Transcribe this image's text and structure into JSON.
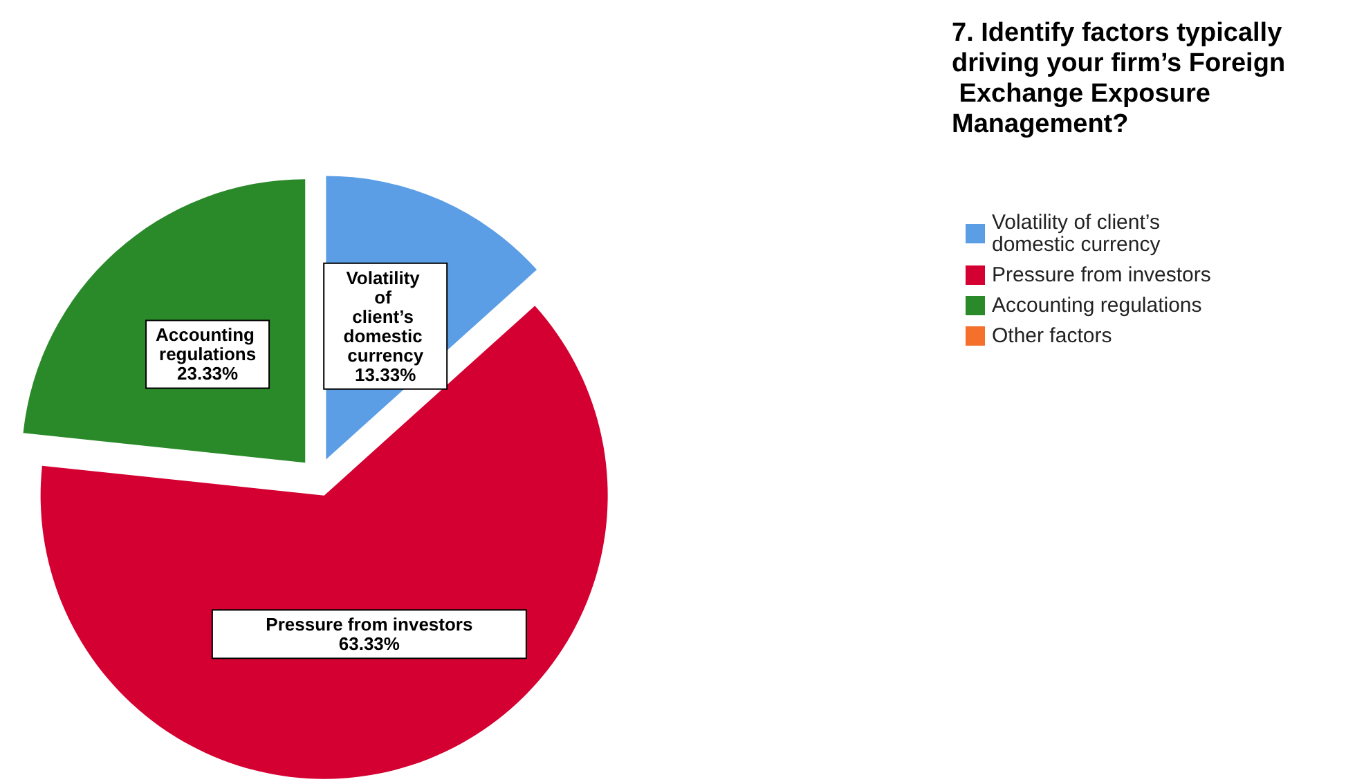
{
  "chart_data": {
    "type": "pie",
    "title": "7. Identify factors typically driving your firm’s Foreign Exchange Exposure Management?",
    "categories": [
      "Volatility of client’s domestic currency",
      "Pressure from investors",
      "Accounting regulations",
      "Other factors"
    ],
    "values": [
      13.33,
      63.33,
      23.33,
      0
    ],
    "value_labels": [
      "13.33%",
      "63.33%",
      "23.33%",
      null
    ],
    "colors": [
      "#5b9ee6",
      "#d50032",
      "#2a8a2a",
      "#f5712b"
    ],
    "legend": "right"
  }
}
